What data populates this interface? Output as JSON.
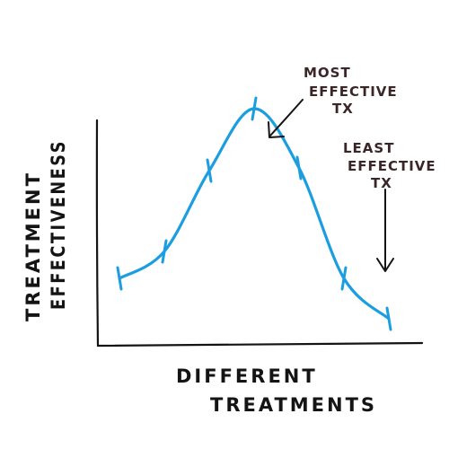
{
  "colors": {
    "curve": "#1b9ee0",
    "axis": "#141414",
    "annotation": "#3a2628"
  },
  "chart_data": {
    "type": "line",
    "title": "",
    "xlabel": [
      "DIFFERENT",
      "TREATMENTS"
    ],
    "ylabel": [
      "TREATMENT",
      "EFFECTIVENESS"
    ],
    "series": [
      {
        "x": [
          1,
          2,
          3,
          4,
          5,
          6,
          7
        ],
        "y": [
          0.25,
          0.35,
          0.65,
          0.88,
          0.66,
          0.25,
          0.1
        ]
      }
    ],
    "xlim": [
      0.5,
      7.5
    ],
    "ylim": [
      0,
      1
    ],
    "grid": false,
    "annotations": [
      {
        "lines": [
          "MOST",
          "EFFECTIVE",
          "TX"
        ],
        "target_x": 4
      },
      {
        "lines": [
          "LEAST",
          "EFFECTIVE",
          "TX"
        ],
        "target_x": 7
      }
    ]
  }
}
